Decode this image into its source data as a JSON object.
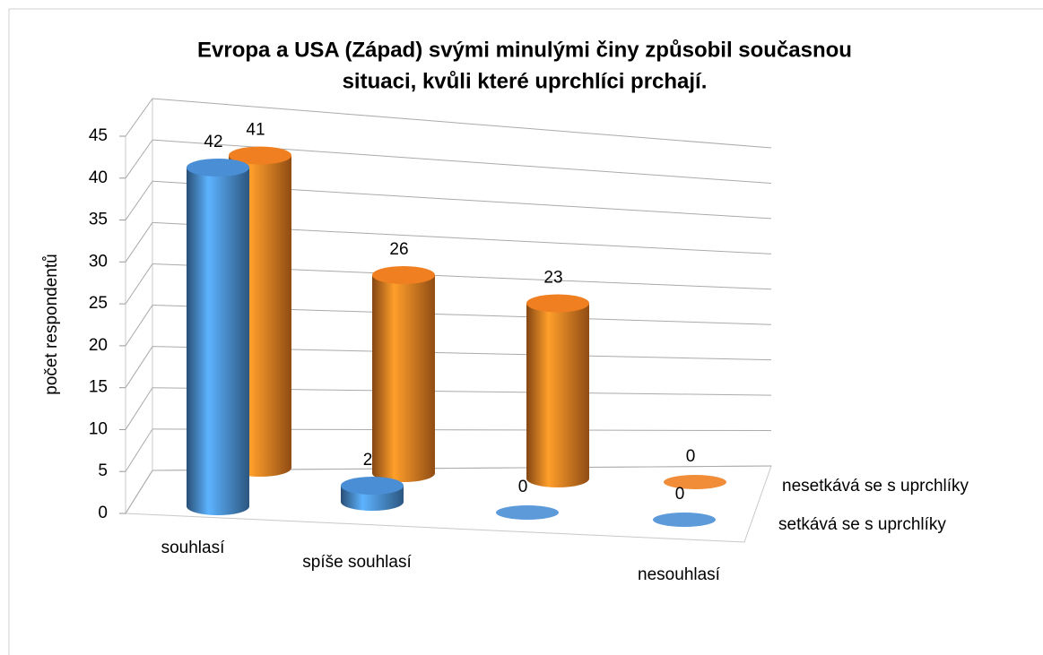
{
  "chart_data": {
    "type": "bar3d",
    "title": [
      "Evropa a USA (Západ) svými minulými činy způsobil současnou",
      "situaci, kvůli které uprchlíci prchají."
    ],
    "y_label": "počet respondentů",
    "categories": [
      "souhlasí",
      "spíše souhlasí",
      null,
      "nesouhlasí"
    ],
    "series": [
      {
        "name": "setkává se s uprchlíky",
        "color": "#4a8fd6",
        "values": [
          42,
          2,
          0,
          0
        ]
      },
      {
        "name": "nesetkává se s uprchlíky",
        "color": "#f07f22",
        "values": [
          41,
          26,
          23,
          0
        ]
      }
    ],
    "ylim": [
      0,
      45
    ],
    "yticks": [
      0,
      5,
      10,
      15,
      20,
      25,
      30,
      35,
      40,
      45
    ],
    "grid": true
  }
}
